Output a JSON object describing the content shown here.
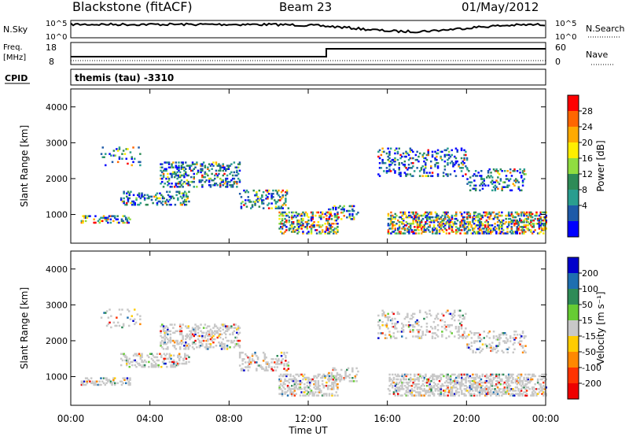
{
  "header": {
    "station": "Blackstone (fitACF)",
    "beam": "Beam 23",
    "date": "01/May/2012"
  },
  "status_panel": {
    "nsky_label": "N.Sky",
    "nsearch_label": "N.Search",
    "nsky_ticks": [
      "10^5",
      "10^0"
    ],
    "nsearch_ticks": [
      "10^5",
      "10^0"
    ],
    "freq_label": "Freq.",
    "freq_unit": "[MHz]",
    "freq_ticks": [
      "18",
      "8"
    ],
    "nave_label": "Nave",
    "nave_ticks": [
      "60",
      "0"
    ],
    "cpid_label": "CPID",
    "cpid_text": "themis (tau) -3310"
  },
  "chart_data": [
    {
      "type": "heatmap",
      "name": "power",
      "ylabel": "Slant Range [km]",
      "colorbar_label": "Power [dB]",
      "colorbar_ticks": [
        "28",
        "24",
        "20",
        "16",
        "12",
        "8",
        "4"
      ],
      "colorbar_colors": [
        "#ff0000",
        "#ff6600",
        "#ffaa00",
        "#ffee00",
        "#90dd40",
        "#2e8b57",
        "#2a9d8f",
        "#1e5aa8",
        "#0000ff"
      ],
      "y_ticks": [
        1000,
        2000,
        3000,
        4000
      ],
      "ylim": [
        200,
        4500
      ]
    },
    {
      "type": "heatmap",
      "name": "velocity",
      "ylabel": "Slant Range [km]",
      "colorbar_label": "Velocity [m s⁻¹]",
      "colorbar_ticks": [
        "200",
        "100",
        "50",
        "15",
        "-15",
        "-50",
        "-100",
        "-200"
      ],
      "colorbar_colors": [
        "#0000cc",
        "#1e6fb0",
        "#2e8b57",
        "#66cc33",
        "#c8c8c8",
        "#ffcc00",
        "#ff8800",
        "#ff3300",
        "#ee0000"
      ],
      "y_ticks": [
        1000,
        2000,
        3000,
        4000
      ],
      "ylim": [
        200,
        4500
      ],
      "xlabel": "Time UT",
      "x_ticks": [
        "00:00",
        "04:00",
        "08:00",
        "12:00",
        "16:00",
        "20:00",
        "00:00"
      ]
    }
  ]
}
